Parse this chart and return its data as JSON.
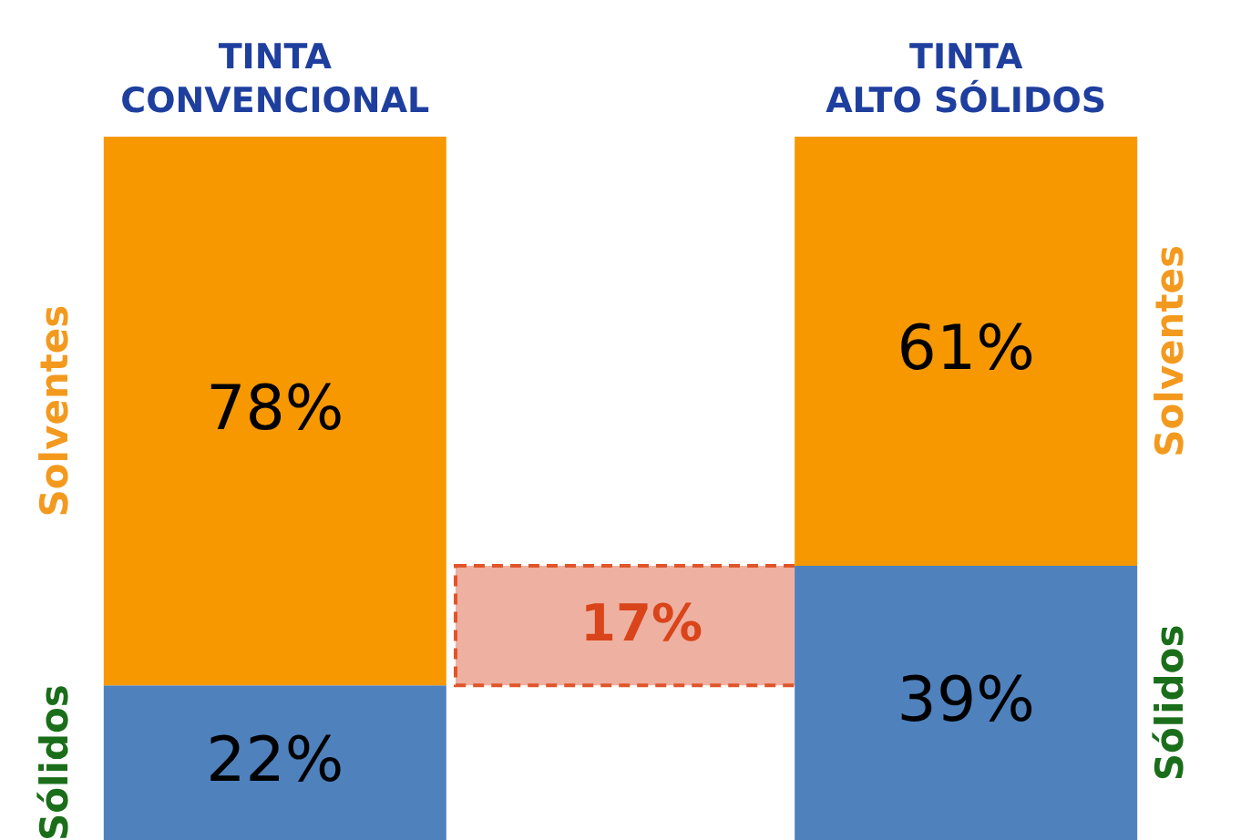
{
  "chart_data": {
    "type": "bar",
    "stacked": true,
    "categories": [
      "TINTA CONVENCIONAL",
      "TINTA ALTO SÓLIDOS"
    ],
    "series": [
      {
        "name": "Sólidos",
        "color": "#4f81bd",
        "values": [
          22,
          39
        ],
        "value_labels": [
          "22%",
          "39%"
        ]
      },
      {
        "name": "Solventes",
        "color": "#f79800",
        "values": [
          78,
          61
        ],
        "value_labels": [
          "78%",
          "61%"
        ]
      }
    ],
    "bands": [
      {
        "axis": "y",
        "from": 22,
        "to": 39,
        "label": "17%",
        "color": "#eeb0a0"
      }
    ]
  }
}
